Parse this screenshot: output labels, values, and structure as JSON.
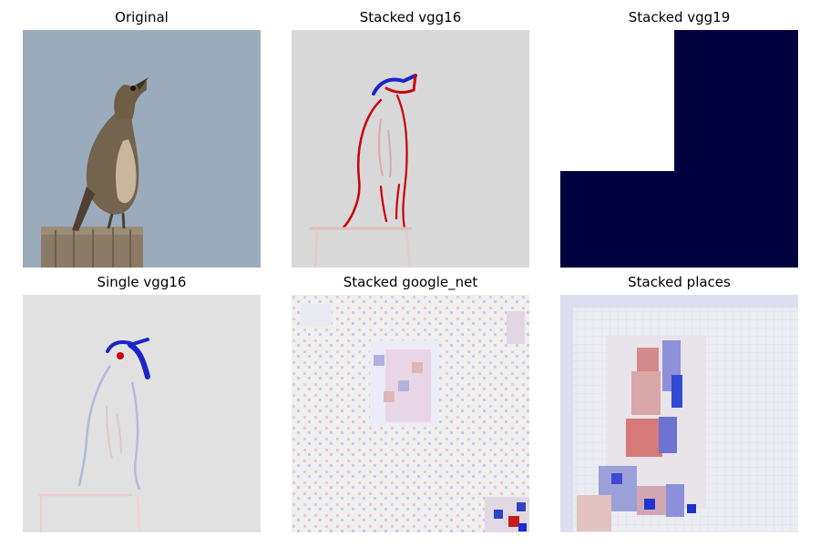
{
  "figure": {
    "panels": [
      {
        "title": "Original",
        "image": "bird-photo"
      },
      {
        "title": "Stacked vgg16",
        "image": "saliency-map"
      },
      {
        "title": "Stacked vgg19",
        "image": "saliency-map-blocks"
      },
      {
        "title": "Single vgg16",
        "image": "saliency-map"
      },
      {
        "title": "Stacked google_net",
        "image": "saliency-map-noisy"
      },
      {
        "title": "Stacked places",
        "image": "saliency-map-coarse"
      }
    ]
  },
  "colors": {
    "photo_sky": "#9aabbc",
    "saliency_background": "#d8d8d8",
    "positive": "#c8000b",
    "negative": "#1c24c8",
    "dark_navy": "#00003f",
    "white": "#ffffff"
  }
}
